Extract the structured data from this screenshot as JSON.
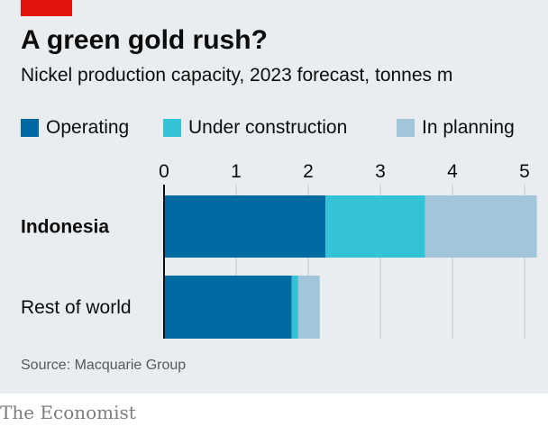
{
  "chart_data": {
    "type": "bar",
    "orientation": "horizontal",
    "stacked": true,
    "title": "A green gold rush?",
    "subtitle": "Nickel production capacity, 2023 forecast, tonnes m",
    "categories": [
      "Indonesia",
      "Rest of world"
    ],
    "category_bold": [
      true,
      false
    ],
    "series": [
      {
        "name": "Operating",
        "color": "#006ba2",
        "values": [
          2.24,
          1.77
        ]
      },
      {
        "name": "Under construction",
        "color": "#33c2d6",
        "values": [
          1.38,
          0.09
        ]
      },
      {
        "name": "In planning",
        "color": "#a1c6d9",
        "values": [
          1.55,
          0.3
        ]
      }
    ],
    "xlim": [
      0,
      5.2
    ],
    "ticks": [
      0,
      1,
      2,
      3,
      4,
      5
    ],
    "tick_labels": [
      "0",
      "1",
      "2",
      "3",
      "4",
      "5"
    ],
    "grid": true,
    "legend_position": "top",
    "xlabel": "",
    "ylabel": ""
  },
  "source": "Source: Macquarie Group",
  "brand": "The Economist"
}
